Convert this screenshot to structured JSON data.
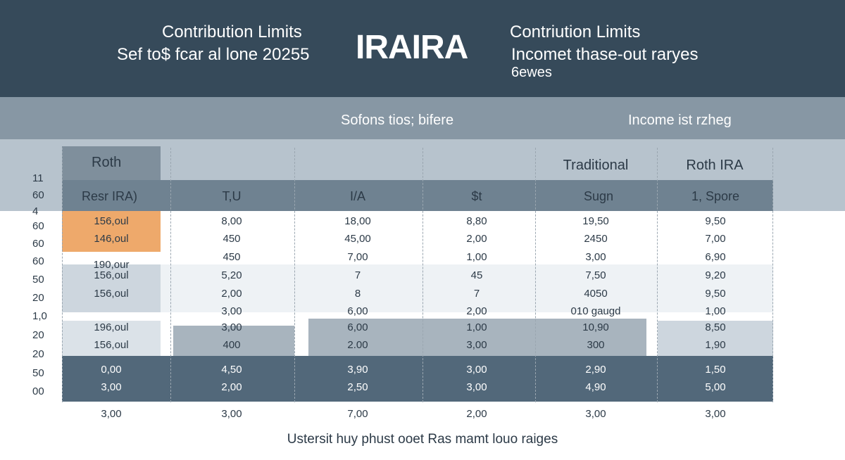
{
  "header": {
    "left_line1": "Contribution Limits",
    "left_line2": "Sef to$ fcar al lone 20255",
    "center_title": "IRAIRA",
    "right_line1": "Contriution Limits",
    "right_line2": "Incomet thase-out raryes",
    "right_line3": "6ewes"
  },
  "band": {
    "label1": "Sofons tios; bifere",
    "label2": "Income ist rzheg"
  },
  "table": {
    "header_row1": [
      "Roth",
      "Traditional",
      "Roth IRA"
    ],
    "header_row2": [
      "Resr IRA)",
      "T,U",
      "I/A",
      "$t",
      "Sugn",
      "1, Spore"
    ],
    "y_labels": [
      "11",
      "60",
      "4",
      "60",
      "60",
      "60",
      "50",
      "20",
      "1,0",
      "20",
      "20",
      "50",
      "00"
    ],
    "rows": [
      [
        "156,oul",
        "8,00",
        "18,00",
        "8,80",
        "19,50",
        "9,50"
      ],
      [
        "146,oul",
        "450",
        "45,00",
        "2,00",
        "2450",
        "7,00"
      ],
      [
        "",
        "450",
        "7,00",
        "1,00",
        "3,00",
        "6,90"
      ],
      [
        "190,our",
        "",
        "",
        "",
        "",
        ""
      ],
      [
        "156,oul",
        "5,20",
        "7",
        "45",
        "7,50",
        "9,20"
      ],
      [
        "156,oul",
        "2,00",
        "8",
        "7",
        "4050",
        "9,50"
      ],
      [
        "",
        "3,00",
        "6,00",
        "2,00",
        "010 gaugd",
        "1,00"
      ],
      [
        "196,oul",
        "3,00",
        "6,00",
        "1,00",
        "10,90",
        "8,50"
      ],
      [
        "156,oul",
        "400",
        "2.00",
        "3,00",
        "300",
        "1,90"
      ],
      [
        "0,00",
        "4,50",
        "3,90",
        "3,00",
        "2,90",
        "1,50"
      ],
      [
        "3,00",
        "2,00",
        "2,50",
        "3,00",
        "4,90",
        "5,00"
      ],
      [
        "3,00",
        "3,00",
        "7,00",
        "2,00",
        "3,00",
        "3,00"
      ]
    ]
  },
  "footer": "Ustersit huy phust ooet Ras mamt louo raiges"
}
